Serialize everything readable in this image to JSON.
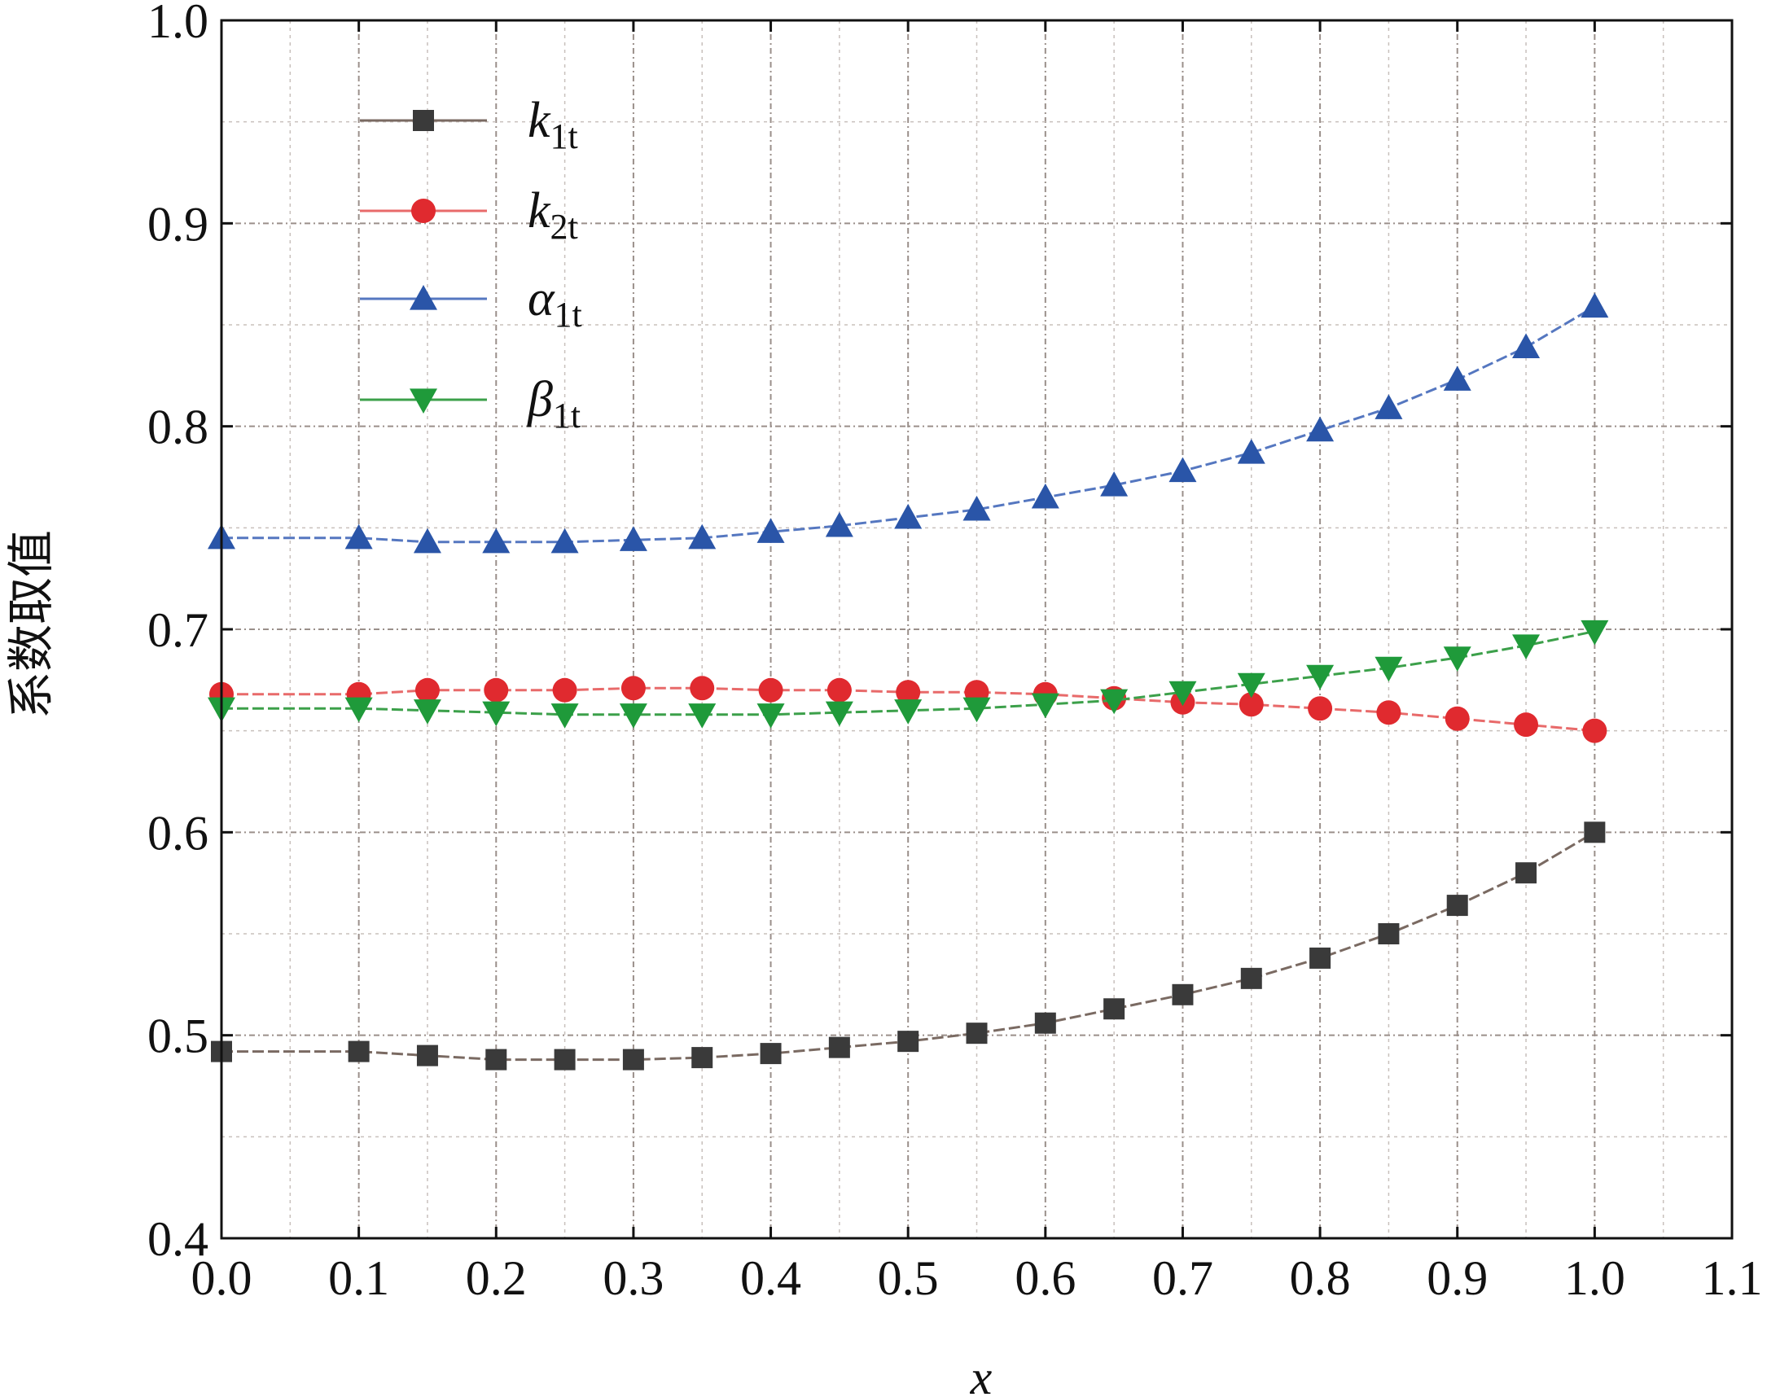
{
  "chart_data": {
    "type": "line",
    "xlabel": "x",
    "ylabel": "系数取值",
    "xlim": [
      0.0,
      1.1
    ],
    "ylim": [
      0.4,
      1.0
    ],
    "x_ticks": [
      "0.0",
      "0.1",
      "0.2",
      "0.3",
      "0.4",
      "0.5",
      "0.6",
      "0.7",
      "0.8",
      "0.9",
      "1.0",
      "1.1"
    ],
    "y_ticks": [
      "0.4",
      "0.5",
      "0.6",
      "0.7",
      "0.8",
      "0.9",
      "1.0"
    ],
    "grid": true,
    "legend_position": "top-left",
    "x": [
      0.0,
      0.1,
      0.15,
      0.2,
      0.25,
      0.3,
      0.35,
      0.4,
      0.45,
      0.5,
      0.55,
      0.6,
      0.65,
      0.7,
      0.75,
      0.8,
      0.85,
      0.9,
      0.95,
      1.0
    ],
    "series": [
      {
        "name": "k",
        "subscript": "1t",
        "color": "#7a6a62",
        "marker_color": "#3a3a3a",
        "marker": "square",
        "values": [
          0.492,
          0.492,
          0.49,
          0.488,
          0.488,
          0.488,
          0.489,
          0.491,
          0.494,
          0.497,
          0.501,
          0.506,
          0.513,
          0.52,
          0.528,
          0.538,
          0.55,
          0.564,
          0.58,
          0.6
        ]
      },
      {
        "name": "k",
        "subscript": "2t",
        "color": "#e86a6a",
        "marker_color": "#e02a2f",
        "marker": "circle",
        "values": [
          0.668,
          0.668,
          0.67,
          0.67,
          0.67,
          0.671,
          0.671,
          0.67,
          0.67,
          0.669,
          0.669,
          0.668,
          0.666,
          0.664,
          0.663,
          0.661,
          0.659,
          0.656,
          0.653,
          0.65
        ]
      },
      {
        "name": "α",
        "subscript": "1t",
        "color": "#5577c0",
        "marker_color": "#2a55a8",
        "marker": "triangle-up",
        "values": [
          0.745,
          0.745,
          0.743,
          0.743,
          0.743,
          0.744,
          0.745,
          0.748,
          0.751,
          0.755,
          0.759,
          0.765,
          0.771,
          0.778,
          0.787,
          0.798,
          0.809,
          0.823,
          0.839,
          0.859
        ]
      },
      {
        "name": "β",
        "subscript": "1t",
        "color": "#3ca04a",
        "marker_color": "#1f9a3a",
        "marker": "triangle-down",
        "values": [
          0.661,
          0.661,
          0.66,
          0.659,
          0.658,
          0.658,
          0.658,
          0.658,
          0.659,
          0.66,
          0.661,
          0.663,
          0.665,
          0.669,
          0.673,
          0.677,
          0.681,
          0.686,
          0.692,
          0.699
        ]
      }
    ]
  }
}
